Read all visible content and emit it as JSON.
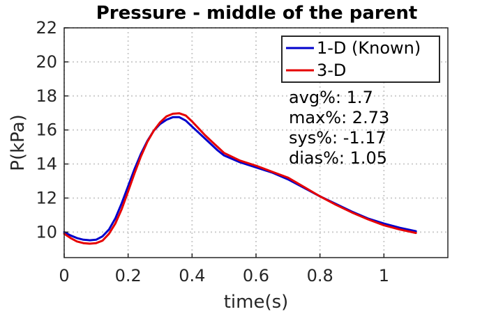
{
  "chart_data": {
    "type": "line",
    "title": "Pressure - middle of the parent",
    "xlabel": "time(s)",
    "ylabel": "P(kPa)",
    "xlim": [
      0,
      1.2
    ],
    "ylim": [
      8.5,
      22
    ],
    "xticks": [
      0,
      0.2,
      0.4,
      0.6,
      0.8,
      1
    ],
    "xtick_labels": [
      "0",
      "0.2",
      "0.4",
      "0.6",
      "0.8",
      "1"
    ],
    "yticks": [
      10,
      12,
      14,
      16,
      18,
      20,
      22
    ],
    "ytick_labels": [
      "10",
      "12",
      "14",
      "16",
      "18",
      "20",
      "22"
    ],
    "grid": true,
    "legend_position": "top-right",
    "series": [
      {
        "name": "1-D (Known)",
        "color": "#0000cc",
        "x": [
          0,
          0.02,
          0.04,
          0.06,
          0.08,
          0.1,
          0.12,
          0.14,
          0.16,
          0.18,
          0.2,
          0.22,
          0.24,
          0.26,
          0.28,
          0.3,
          0.32,
          0.34,
          0.36,
          0.38,
          0.4,
          0.42,
          0.44,
          0.46,
          0.48,
          0.5,
          0.55,
          0.6,
          0.65,
          0.7,
          0.75,
          0.8,
          0.85,
          0.9,
          0.95,
          1.0,
          1.05,
          1.1
        ],
        "values": [
          10.0,
          9.8,
          9.65,
          9.55,
          9.52,
          9.55,
          9.75,
          10.15,
          10.8,
          11.7,
          12.7,
          13.7,
          14.6,
          15.35,
          15.95,
          16.35,
          16.6,
          16.75,
          16.75,
          16.55,
          16.2,
          15.85,
          15.5,
          15.15,
          14.8,
          14.5,
          14.1,
          13.8,
          13.5,
          13.1,
          12.6,
          12.1,
          11.65,
          11.2,
          10.8,
          10.5,
          10.25,
          10.05
        ]
      },
      {
        "name": "3-D",
        "color": "#e60000",
        "x": [
          0,
          0.02,
          0.04,
          0.06,
          0.08,
          0.1,
          0.12,
          0.14,
          0.16,
          0.18,
          0.2,
          0.22,
          0.24,
          0.26,
          0.28,
          0.3,
          0.32,
          0.34,
          0.36,
          0.38,
          0.4,
          0.42,
          0.44,
          0.46,
          0.48,
          0.5,
          0.55,
          0.6,
          0.65,
          0.7,
          0.75,
          0.8,
          0.85,
          0.9,
          0.95,
          1.0,
          1.05,
          1.1
        ],
        "values": [
          9.9,
          9.65,
          9.45,
          9.35,
          9.32,
          9.35,
          9.5,
          9.9,
          10.5,
          11.35,
          12.4,
          13.45,
          14.45,
          15.3,
          15.95,
          16.45,
          16.8,
          16.95,
          16.98,
          16.85,
          16.5,
          16.1,
          15.7,
          15.35,
          15.0,
          14.65,
          14.2,
          13.9,
          13.55,
          13.2,
          12.65,
          12.1,
          11.6,
          11.15,
          10.75,
          10.4,
          10.15,
          9.95
        ]
      }
    ],
    "annotations": [
      "avg%: 1.7",
      "max%: 2.73",
      "sys%: -1.17",
      "dias%: 1.05"
    ]
  }
}
